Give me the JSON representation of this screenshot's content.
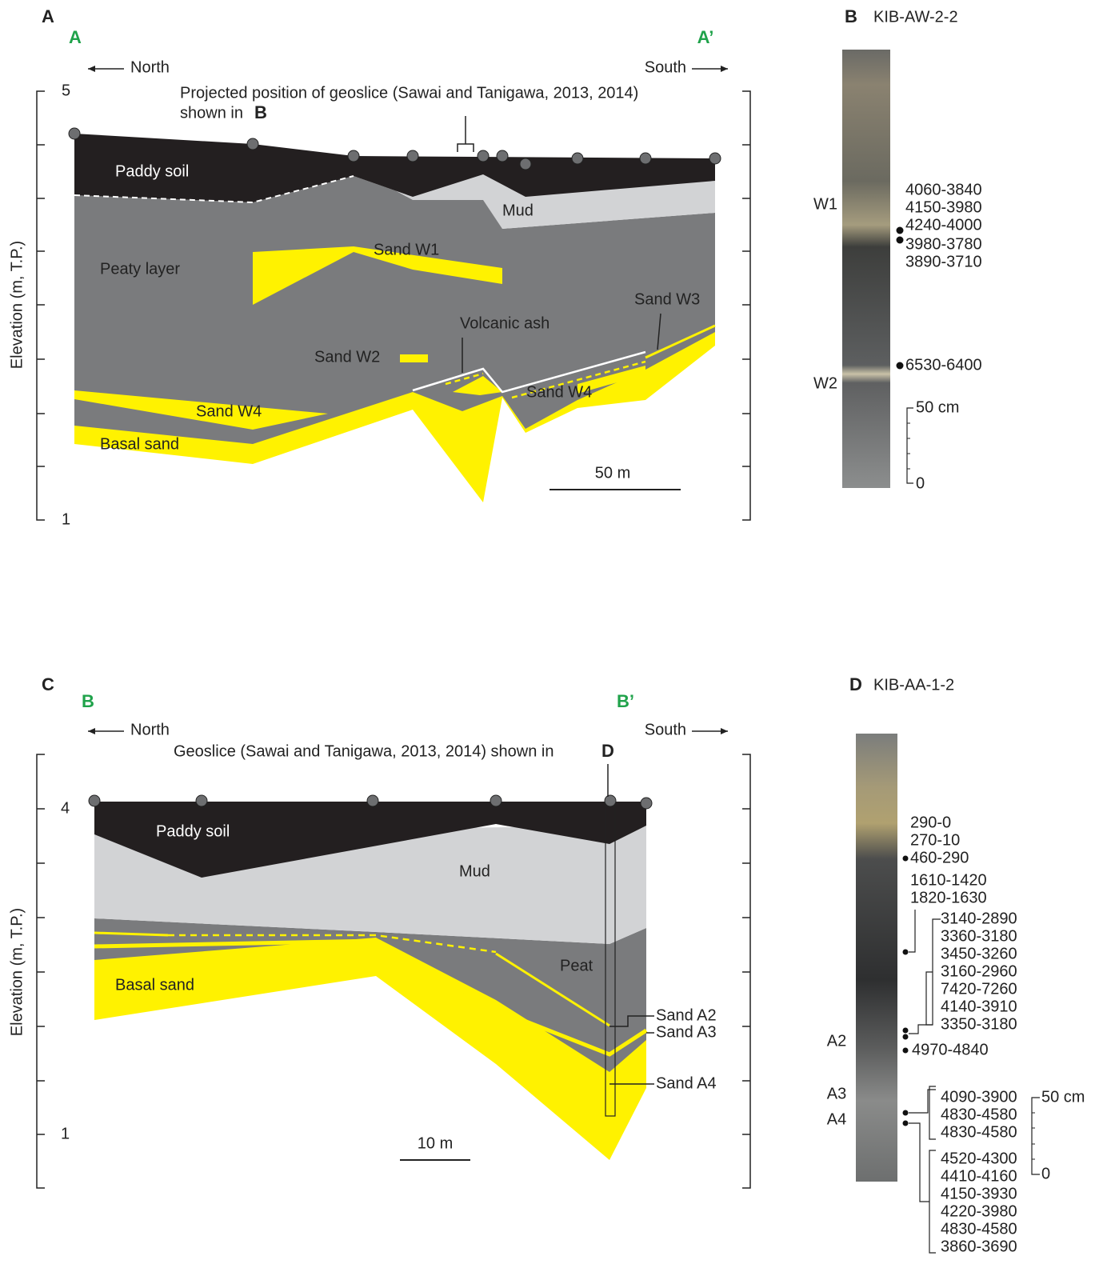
{
  "panel_a": {
    "letter": "A",
    "start": "A",
    "end": "A’",
    "north": "North",
    "south": "South",
    "y_axis": "Elevation (m, T.P.)",
    "y_ticks": [
      "5",
      "1"
    ],
    "note": "Projected position of geoslice (Sawai and Tanigawa, 2013, 2014)",
    "note_2": "shown in",
    "note_ref": "B",
    "layers": [
      "Paddy soil",
      "Mud",
      "Peaty layer",
      "Sand W1",
      "Sand W3",
      "Volcanic ash",
      "Sand W2",
      "Sand W4",
      "Sand W4",
      "Basal sand"
    ],
    "scale": "50 m"
  },
  "panel_b": {
    "letter": "B",
    "core": "KIB-AW-2-2",
    "units": [
      "W1",
      "W2"
    ],
    "ages": [
      "4060-3840",
      "4150-3980",
      "4240-4000",
      "3980-3780",
      "3890-3710",
      "6530-6400"
    ],
    "scale": [
      "50 cm",
      "0"
    ]
  },
  "panel_c": {
    "letter": "C",
    "start": "B",
    "end": "B’",
    "north": "North",
    "south": "South",
    "y_axis": "Elevation (m, T.P.)",
    "y_ticks": [
      "4",
      "1"
    ],
    "note": "Geoslice (Sawai and Tanigawa, 2013, 2014) shown in",
    "note_ref": "D",
    "layers": [
      "Paddy soil",
      "Mud",
      "Peat",
      "Basal sand",
      "Sand A2",
      "Sand A3",
      "Sand A4"
    ],
    "scale": "10 m"
  },
  "panel_d": {
    "letter": "D",
    "core": "KIB-AA-1-2",
    "units": [
      "A2",
      "A3",
      "A4"
    ],
    "ages": [
      "290-0",
      "270-10",
      "460-290",
      "1610-1420",
      "1820-1630",
      "3140-2890",
      "3360-3180",
      "3450-3260",
      "3160-2960",
      "7420-7260",
      "4140-3910",
      "3350-3180",
      "4970-4840",
      "4090-3900",
      "4830-4580",
      "4830-4580",
      "4520-4300",
      "4410-4160",
      "4150-3930",
      "4220-3980",
      "4830-4580",
      "3860-3690"
    ],
    "scale": [
      "50 cm",
      "0"
    ]
  }
}
